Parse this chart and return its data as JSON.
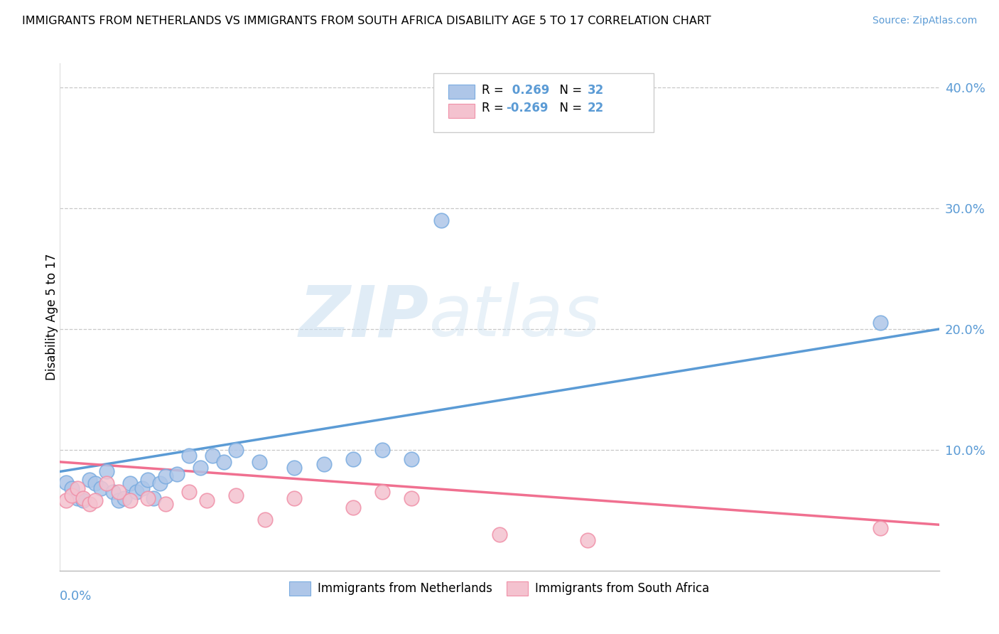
{
  "title": "IMMIGRANTS FROM NETHERLANDS VS IMMIGRANTS FROM SOUTH AFRICA DISABILITY AGE 5 TO 17 CORRELATION CHART",
  "source": "Source: ZipAtlas.com",
  "ylabel": "Disability Age 5 to 17",
  "legend_label1": "Immigrants from Netherlands",
  "legend_label2": "Immigrants from South Africa",
  "R1": 0.269,
  "N1": 32,
  "R2": -0.269,
  "N2": 22,
  "watermark_zip": "ZIP",
  "watermark_atlas": "atlas",
  "xlim": [
    0.0,
    0.15
  ],
  "ylim": [
    0.0,
    0.42
  ],
  "yticks": [
    0.1,
    0.2,
    0.3,
    0.4
  ],
  "ytick_labels": [
    "10.0%",
    "20.0%",
    "30.0%",
    "40.0%"
  ],
  "blue_color": "#aec6e8",
  "blue_edge_color": "#7aace0",
  "pink_color": "#f4c2cf",
  "pink_edge_color": "#f090a8",
  "blue_line_color": "#5b9bd5",
  "pink_line_color": "#f07090",
  "axis_color": "#5b9bd5",
  "grid_color": "#c8c8c8",
  "blue_scatter": [
    [
      0.001,
      0.073
    ],
    [
      0.002,
      0.068
    ],
    [
      0.003,
      0.06
    ],
    [
      0.004,
      0.058
    ],
    [
      0.005,
      0.075
    ],
    [
      0.006,
      0.072
    ],
    [
      0.007,
      0.068
    ],
    [
      0.008,
      0.082
    ],
    [
      0.009,
      0.065
    ],
    [
      0.01,
      0.058
    ],
    [
      0.011,
      0.06
    ],
    [
      0.012,
      0.072
    ],
    [
      0.013,
      0.065
    ],
    [
      0.014,
      0.068
    ],
    [
      0.015,
      0.075
    ],
    [
      0.016,
      0.06
    ],
    [
      0.017,
      0.072
    ],
    [
      0.018,
      0.078
    ],
    [
      0.02,
      0.08
    ],
    [
      0.022,
      0.095
    ],
    [
      0.024,
      0.085
    ],
    [
      0.026,
      0.095
    ],
    [
      0.028,
      0.09
    ],
    [
      0.03,
      0.1
    ],
    [
      0.034,
      0.09
    ],
    [
      0.04,
      0.085
    ],
    [
      0.045,
      0.088
    ],
    [
      0.05,
      0.092
    ],
    [
      0.055,
      0.1
    ],
    [
      0.06,
      0.092
    ],
    [
      0.065,
      0.29
    ],
    [
      0.14,
      0.205
    ]
  ],
  "pink_scatter": [
    [
      0.001,
      0.058
    ],
    [
      0.002,
      0.062
    ],
    [
      0.003,
      0.068
    ],
    [
      0.004,
      0.06
    ],
    [
      0.005,
      0.055
    ],
    [
      0.006,
      0.058
    ],
    [
      0.008,
      0.072
    ],
    [
      0.01,
      0.065
    ],
    [
      0.012,
      0.058
    ],
    [
      0.015,
      0.06
    ],
    [
      0.018,
      0.055
    ],
    [
      0.022,
      0.065
    ],
    [
      0.025,
      0.058
    ],
    [
      0.03,
      0.062
    ],
    [
      0.035,
      0.042
    ],
    [
      0.04,
      0.06
    ],
    [
      0.05,
      0.052
    ],
    [
      0.055,
      0.065
    ],
    [
      0.06,
      0.06
    ],
    [
      0.075,
      0.03
    ],
    [
      0.09,
      0.025
    ],
    [
      0.14,
      0.035
    ]
  ]
}
